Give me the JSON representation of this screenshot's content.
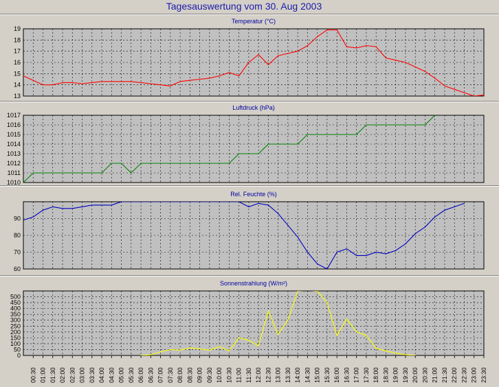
{
  "title": "Tagesauswertung vom 30. Aug 2003",
  "x_ticks": [
    "00:30",
    "01:00",
    "01:30",
    "02:00",
    "02:30",
    "03:00",
    "03:30",
    "04:00",
    "04:30",
    "05:00",
    "05:30",
    "06:00",
    "06:30",
    "07:00",
    "07:30",
    "08:00",
    "08:30",
    "09:00",
    "09:30",
    "10:00",
    "10:30",
    "11:00",
    "11:30",
    "12:00",
    "12:30",
    "13:00",
    "13:30",
    "14:00",
    "14:30",
    "15:00",
    "15:30",
    "16:00",
    "16:30",
    "17:00",
    "17:30",
    "18:00",
    "18:30",
    "19:00",
    "19:30",
    "20:00",
    "20:30",
    "21:00",
    "21:30",
    "22:00",
    "22:30",
    "23:00",
    "23:30"
  ],
  "chart_data": [
    {
      "type": "line",
      "title": "Temperatur (°C)",
      "color": "#ff0000",
      "ylim": [
        13,
        19
      ],
      "yticks": [
        13,
        14,
        15,
        16,
        17,
        18,
        19
      ],
      "grid": true,
      "x": [
        "00:00",
        "00:30",
        "01:00",
        "01:30",
        "02:00",
        "02:30",
        "03:00",
        "03:30",
        "04:00",
        "04:30",
        "05:00",
        "05:30",
        "06:00",
        "06:30",
        "07:00",
        "07:30",
        "08:00",
        "08:30",
        "09:00",
        "09:30",
        "10:00",
        "10:30",
        "11:00",
        "11:30",
        "12:00",
        "12:30",
        "13:00",
        "13:30",
        "14:00",
        "14:30",
        "15:00",
        "15:30",
        "16:00",
        "16:30",
        "17:00",
        "17:30",
        "18:00",
        "18:30",
        "19:00",
        "19:30",
        "20:00",
        "20:30",
        "21:00",
        "21:30",
        "22:00",
        "22:30",
        "23:00",
        "23:30"
      ],
      "values": [
        14.8,
        14.4,
        14.0,
        14.0,
        14.2,
        14.2,
        14.1,
        14.2,
        14.3,
        14.3,
        14.3,
        14.3,
        14.2,
        14.1,
        14.0,
        13.9,
        14.3,
        14.4,
        14.5,
        14.6,
        14.8,
        15.1,
        14.8,
        16.0,
        16.7,
        15.8,
        16.6,
        16.8,
        17.0,
        17.5,
        18.3,
        18.9,
        18.9,
        17.4,
        17.3,
        17.5,
        17.4,
        16.4,
        16.2,
        16.0,
        15.6,
        15.2,
        14.6,
        13.9,
        13.6,
        13.3,
        13.0,
        13.1
      ]
    },
    {
      "type": "line",
      "title": "Luftdruck (hPa)",
      "color": "#008000",
      "ylim": [
        1010,
        1017
      ],
      "yticks": [
        1010,
        1011,
        1012,
        1013,
        1014,
        1015,
        1016,
        1017
      ],
      "grid": true,
      "x": [
        "00:00",
        "00:30",
        "01:00",
        "01:30",
        "02:00",
        "02:30",
        "03:00",
        "03:30",
        "04:00",
        "04:30",
        "05:00",
        "05:30",
        "06:00",
        "06:30",
        "07:00",
        "07:30",
        "08:00",
        "08:30",
        "09:00",
        "09:30",
        "10:00",
        "10:30",
        "11:00",
        "11:30",
        "12:00",
        "12:30",
        "13:00",
        "13:30",
        "14:00",
        "14:30",
        "15:00",
        "15:30",
        "16:00",
        "16:30",
        "17:00",
        "17:30",
        "18:00",
        "18:30",
        "19:00",
        "19:30",
        "20:00",
        "20:30",
        "21:00"
      ],
      "values": [
        1010,
        1011,
        1011,
        1011,
        1011,
        1011,
        1011,
        1011,
        1011,
        1012,
        1012,
        1011,
        1012,
        1012,
        1012,
        1012,
        1012,
        1012,
        1012,
        1012,
        1012,
        1012,
        1013,
        1013,
        1013,
        1014,
        1014,
        1014,
        1014,
        1015,
        1015,
        1015,
        1015,
        1015,
        1015,
        1016,
        1016,
        1016,
        1016,
        1016,
        1016,
        1016,
        1017
      ]
    },
    {
      "type": "line",
      "title": "Rel. Feuchte (%)",
      "color": "#0000c0",
      "ylim": [
        60,
        100
      ],
      "yticks": [
        60,
        70,
        80,
        90
      ],
      "grid": true,
      "x": [
        "00:00",
        "00:30",
        "01:00",
        "01:30",
        "02:00",
        "02:30",
        "03:00",
        "03:30",
        "04:00",
        "04:30",
        "05:00",
        "11:00",
        "11:30",
        "12:00",
        "12:30",
        "13:00",
        "13:30",
        "14:00",
        "14:30",
        "15:00",
        "15:30",
        "16:00",
        "16:30",
        "17:00",
        "17:30",
        "18:00",
        "18:30",
        "19:00",
        "19:30",
        "20:00",
        "20:30",
        "21:00",
        "21:30",
        "22:00",
        "22:30"
      ],
      "values": [
        89,
        91,
        95,
        97,
        96,
        96,
        97,
        98,
        98,
        98,
        100,
        100,
        97,
        99,
        98,
        93,
        86,
        79,
        70,
        63,
        60,
        70,
        72,
        68,
        68,
        70,
        69,
        71,
        75,
        81,
        85,
        91,
        95,
        97,
        99
      ]
    },
    {
      "type": "line",
      "title": "Sonnenstrahlung (W/m²)",
      "color": "#ffff00",
      "ylim": [
        0,
        550
      ],
      "yticks": [
        0,
        50,
        100,
        150,
        200,
        250,
        300,
        350,
        400,
        450,
        500
      ],
      "grid": true,
      "x": [
        "06:00",
        "06:30",
        "07:00",
        "07:30",
        "08:00",
        "08:30",
        "09:00",
        "09:30",
        "10:00",
        "10:30",
        "11:00",
        "11:30",
        "12:00",
        "12:30",
        "13:00",
        "13:30",
        "14:00",
        "14:30",
        "15:00",
        "15:30",
        "16:00",
        "16:30",
        "17:00",
        "17:30",
        "18:00",
        "18:30",
        "19:00",
        "19:30",
        "20:00"
      ],
      "values": [
        0,
        5,
        30,
        50,
        45,
        65,
        55,
        45,
        75,
        40,
        150,
        130,
        80,
        380,
        180,
        300,
        550,
        555,
        550,
        450,
        170,
        310,
        200,
        170,
        60,
        40,
        20,
        5,
        0
      ]
    }
  ]
}
